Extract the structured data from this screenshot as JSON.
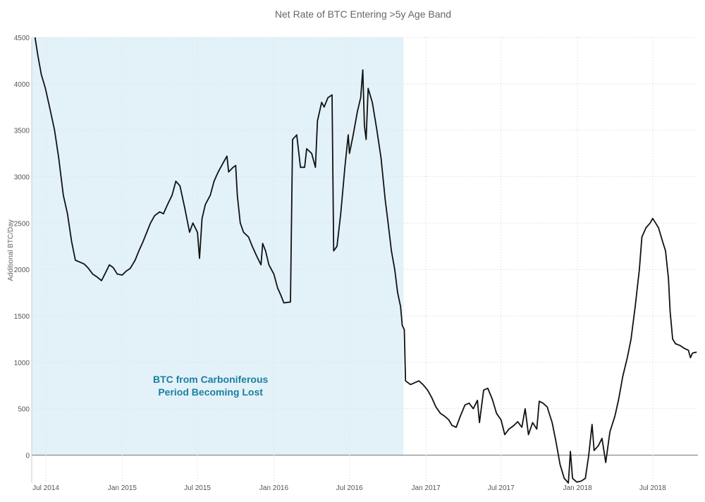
{
  "chart_data": {
    "type": "line",
    "title": "Net Rate of BTC Entering >5y Age Band",
    "xlabel": "",
    "ylabel": "Additional BTC/Day",
    "ylim": [
      -300,
      4500
    ],
    "xlim": [
      "2014-05-28",
      "2018-10-18"
    ],
    "yticks": [
      0,
      500,
      1000,
      1500,
      2000,
      2500,
      3000,
      3500,
      4000,
      4500
    ],
    "xticks": [
      {
        "date": "2014-07-01",
        "label": "Jul 2014"
      },
      {
        "date": "2015-01-01",
        "label": "Jan 2015"
      },
      {
        "date": "2015-07-01",
        "label": "Jul 2015"
      },
      {
        "date": "2016-01-01",
        "label": "Jan 2016"
      },
      {
        "date": "2016-07-01",
        "label": "Jul 2016"
      },
      {
        "date": "2017-01-01",
        "label": "Jan 2017"
      },
      {
        "date": "2017-07-01",
        "label": "Jul 2017"
      },
      {
        "date": "2018-01-01",
        "label": "Jan 2018"
      },
      {
        "date": "2018-07-01",
        "label": "Jul 2018"
      }
    ],
    "grid": true,
    "line_color": "#111111",
    "shaded_region": {
      "x": [
        "2014-05-28",
        "2016-11-08"
      ],
      "y": [
        0,
        4500
      ],
      "color": "#e3f2f9",
      "label": [
        "BTC from Carboniferous",
        "Period Becoming Lost"
      ],
      "label_color": "#1b7fa0"
    },
    "series": [
      {
        "name": "",
        "points": [
          [
            "2014-06-05",
            4500
          ],
          [
            "2014-06-12",
            4300
          ],
          [
            "2014-06-20",
            4100
          ],
          [
            "2014-06-30",
            3950
          ],
          [
            "2014-07-10",
            3750
          ],
          [
            "2014-07-22",
            3500
          ],
          [
            "2014-08-01",
            3200
          ],
          [
            "2014-08-12",
            2800
          ],
          [
            "2014-08-22",
            2600
          ],
          [
            "2014-09-01",
            2300
          ],
          [
            "2014-09-10",
            2100
          ],
          [
            "2014-09-20",
            2080
          ],
          [
            "2014-10-01",
            2060
          ],
          [
            "2014-10-10",
            2020
          ],
          [
            "2014-10-22",
            1950
          ],
          [
            "2014-11-01",
            1920
          ],
          [
            "2014-11-12",
            1880
          ],
          [
            "2014-11-20",
            1950
          ],
          [
            "2014-12-01",
            2050
          ],
          [
            "2014-12-10",
            2020
          ],
          [
            "2014-12-20",
            1950
          ],
          [
            "2015-01-01",
            1940
          ],
          [
            "2015-01-10",
            1980
          ],
          [
            "2015-01-20",
            2010
          ],
          [
            "2015-02-01",
            2100
          ],
          [
            "2015-02-10",
            2200
          ],
          [
            "2015-02-20",
            2300
          ],
          [
            "2015-03-01",
            2400
          ],
          [
            "2015-03-10",
            2500
          ],
          [
            "2015-03-20",
            2580
          ],
          [
            "2015-04-01",
            2620
          ],
          [
            "2015-04-10",
            2600
          ],
          [
            "2015-04-20",
            2700
          ],
          [
            "2015-05-01",
            2800
          ],
          [
            "2015-05-10",
            2950
          ],
          [
            "2015-05-20",
            2900
          ],
          [
            "2015-06-01",
            2650
          ],
          [
            "2015-06-12",
            2400
          ],
          [
            "2015-06-20",
            2500
          ],
          [
            "2015-07-01",
            2400
          ],
          [
            "2015-07-06",
            2120
          ],
          [
            "2015-07-12",
            2550
          ],
          [
            "2015-07-20",
            2700
          ],
          [
            "2015-08-01",
            2800
          ],
          [
            "2015-08-10",
            2950
          ],
          [
            "2015-08-20",
            3050
          ],
          [
            "2015-09-01",
            3150
          ],
          [
            "2015-09-10",
            3220
          ],
          [
            "2015-09-14",
            3050
          ],
          [
            "2015-09-25",
            3100
          ],
          [
            "2015-10-01",
            3120
          ],
          [
            "2015-10-05",
            2800
          ],
          [
            "2015-10-12",
            2500
          ],
          [
            "2015-10-20",
            2400
          ],
          [
            "2015-11-01",
            2350
          ],
          [
            "2015-11-10",
            2250
          ],
          [
            "2015-11-20",
            2150
          ],
          [
            "2015-12-01",
            2050
          ],
          [
            "2015-12-05",
            2280
          ],
          [
            "2015-12-12",
            2200
          ],
          [
            "2015-12-20",
            2050
          ],
          [
            "2016-01-01",
            1950
          ],
          [
            "2016-01-10",
            1800
          ],
          [
            "2016-01-18",
            1720
          ],
          [
            "2016-01-25",
            1640
          ],
          [
            "2016-02-10",
            1650
          ],
          [
            "2016-02-15",
            3400
          ],
          [
            "2016-02-25",
            3450
          ],
          [
            "2016-03-05",
            3100
          ],
          [
            "2016-03-15",
            3100
          ],
          [
            "2016-03-20",
            3300
          ],
          [
            "2016-04-01",
            3250
          ],
          [
            "2016-04-10",
            3100
          ],
          [
            "2016-04-15",
            3600
          ],
          [
            "2016-04-25",
            3800
          ],
          [
            "2016-05-01",
            3750
          ],
          [
            "2016-05-10",
            3850
          ],
          [
            "2016-05-20",
            3880
          ],
          [
            "2016-05-24",
            2200
          ],
          [
            "2016-06-01",
            2250
          ],
          [
            "2016-06-10",
            2600
          ],
          [
            "2016-06-20",
            3100
          ],
          [
            "2016-06-28",
            3450
          ],
          [
            "2016-07-01",
            3250
          ],
          [
            "2016-07-10",
            3450
          ],
          [
            "2016-07-20",
            3700
          ],
          [
            "2016-07-28",
            3850
          ],
          [
            "2016-08-02",
            4150
          ],
          [
            "2016-08-06",
            3550
          ],
          [
            "2016-08-10",
            3400
          ],
          [
            "2016-08-15",
            3950
          ],
          [
            "2016-08-25",
            3800
          ],
          [
            "2016-09-05",
            3500
          ],
          [
            "2016-09-15",
            3200
          ],
          [
            "2016-09-25",
            2750
          ],
          [
            "2016-10-02",
            2500
          ],
          [
            "2016-10-10",
            2200
          ],
          [
            "2016-10-18",
            2000
          ],
          [
            "2016-10-25",
            1750
          ],
          [
            "2016-11-01",
            1600
          ],
          [
            "2016-11-05",
            1400
          ],
          [
            "2016-11-10",
            1350
          ],
          [
            "2016-11-13",
            800
          ],
          [
            "2016-11-25",
            760
          ],
          [
            "2016-12-05",
            780
          ],
          [
            "2016-12-15",
            800
          ],
          [
            "2016-12-25",
            760
          ],
          [
            "2017-01-05",
            700
          ],
          [
            "2017-01-15",
            620
          ],
          [
            "2017-01-25",
            520
          ],
          [
            "2017-02-05",
            450
          ],
          [
            "2017-02-15",
            420
          ],
          [
            "2017-02-25",
            380
          ],
          [
            "2017-03-05",
            320
          ],
          [
            "2017-03-15",
            300
          ],
          [
            "2017-03-25",
            420
          ],
          [
            "2017-04-05",
            540
          ],
          [
            "2017-04-15",
            560
          ],
          [
            "2017-04-25",
            500
          ],
          [
            "2017-05-05",
            590
          ],
          [
            "2017-05-10",
            350
          ],
          [
            "2017-05-20",
            700
          ],
          [
            "2017-05-30",
            720
          ],
          [
            "2017-06-10",
            600
          ],
          [
            "2017-06-20",
            450
          ],
          [
            "2017-07-01",
            380
          ],
          [
            "2017-07-10",
            220
          ],
          [
            "2017-07-20",
            280
          ],
          [
            "2017-08-01",
            320
          ],
          [
            "2017-08-10",
            360
          ],
          [
            "2017-08-20",
            300
          ],
          [
            "2017-08-28",
            500
          ],
          [
            "2017-09-05",
            220
          ],
          [
            "2017-09-15",
            350
          ],
          [
            "2017-09-25",
            280
          ],
          [
            "2017-10-01",
            580
          ],
          [
            "2017-10-10",
            560
          ],
          [
            "2017-10-20",
            520
          ],
          [
            "2017-11-01",
            350
          ],
          [
            "2017-11-10",
            150
          ],
          [
            "2017-11-20",
            -100
          ],
          [
            "2017-11-30",
            -250
          ],
          [
            "2017-12-10",
            -300
          ],
          [
            "2017-12-15",
            40
          ],
          [
            "2017-12-20",
            -250
          ],
          [
            "2017-12-30",
            -290
          ],
          [
            "2018-01-10",
            -280
          ],
          [
            "2018-01-20",
            -250
          ],
          [
            "2018-01-28",
            0
          ],
          [
            "2018-02-05",
            330
          ],
          [
            "2018-02-10",
            50
          ],
          [
            "2018-02-20",
            100
          ],
          [
            "2018-03-01",
            180
          ],
          [
            "2018-03-10",
            -80
          ],
          [
            "2018-03-20",
            250
          ],
          [
            "2018-04-01",
            420
          ],
          [
            "2018-04-10",
            600
          ],
          [
            "2018-04-20",
            850
          ],
          [
            "2018-05-01",
            1050
          ],
          [
            "2018-05-10",
            1250
          ],
          [
            "2018-05-20",
            1600
          ],
          [
            "2018-05-30",
            2000
          ],
          [
            "2018-06-05",
            2350
          ],
          [
            "2018-06-15",
            2450
          ],
          [
            "2018-06-25",
            2500
          ],
          [
            "2018-07-01",
            2550
          ],
          [
            "2018-07-08",
            2500
          ],
          [
            "2018-07-15",
            2450
          ],
          [
            "2018-07-25",
            2300
          ],
          [
            "2018-08-01",
            2200
          ],
          [
            "2018-08-08",
            1900
          ],
          [
            "2018-08-12",
            1550
          ],
          [
            "2018-08-18",
            1250
          ],
          [
            "2018-08-25",
            1200
          ],
          [
            "2018-09-05",
            1180
          ],
          [
            "2018-09-15",
            1150
          ],
          [
            "2018-09-25",
            1130
          ],
          [
            "2018-09-30",
            1050
          ],
          [
            "2018-10-05",
            1100
          ],
          [
            "2018-10-15",
            1110
          ]
        ]
      }
    ]
  }
}
